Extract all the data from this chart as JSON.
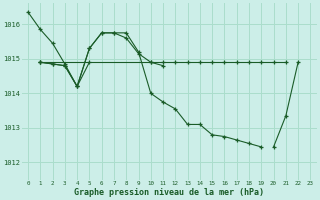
{
  "bg_color": "#cceee8",
  "grid_color": "#aaddcc",
  "line_color": "#1a5c28",
  "xlabel": "Graphe pression niveau de la mer (hPa)",
  "xlabel_color": "#1a5c28",
  "ylim": [
    1011.5,
    1016.6
  ],
  "xlim": [
    -0.5,
    23.5
  ],
  "yticks": [
    1012,
    1013,
    1014,
    1015,
    1016
  ],
  "xticks": [
    0,
    1,
    2,
    3,
    4,
    5,
    6,
    7,
    8,
    9,
    10,
    11,
    12,
    13,
    14,
    15,
    16,
    17,
    18,
    19,
    20,
    21,
    22,
    23
  ],
  "series": [
    {
      "x": [
        0,
        1,
        2,
        3,
        4,
        5,
        6,
        7,
        8,
        9,
        10,
        11,
        12,
        13,
        14,
        15,
        16,
        17,
        18,
        19
      ],
      "y": [
        1016.35,
        1015.85,
        1015.45,
        1014.85,
        1014.2,
        1015.3,
        1015.75,
        1015.75,
        1015.75,
        1015.2,
        1014.0,
        1013.75,
        1013.55,
        1013.1,
        1013.1,
        1012.8,
        1012.75,
        1012.65,
        1012.55,
        1012.45
      ]
    },
    {
      "x": [
        1,
        2,
        3,
        4,
        5
      ],
      "y": [
        1014.9,
        1014.85,
        1014.8,
        1014.2,
        1014.9
      ]
    },
    {
      "x": [
        1,
        2,
        3,
        4,
        5,
        6,
        7,
        8,
        9,
        10,
        11
      ],
      "y": [
        1014.9,
        1014.85,
        1014.8,
        1014.2,
        1015.3,
        1015.75,
        1015.75,
        1015.6,
        1015.15,
        1014.9,
        1014.8
      ]
    },
    {
      "x": [
        1,
        10,
        11,
        12,
        13,
        14,
        15,
        16,
        17,
        18,
        19,
        20,
        21
      ],
      "y": [
        1014.9,
        1014.9,
        1014.9,
        1014.9,
        1014.9,
        1014.9,
        1014.9,
        1014.9,
        1014.9,
        1014.9,
        1014.9,
        1014.9,
        1014.9
      ]
    },
    {
      "x": [
        20,
        21,
        22
      ],
      "y": [
        1012.45,
        1013.35,
        1014.9
      ]
    }
  ]
}
